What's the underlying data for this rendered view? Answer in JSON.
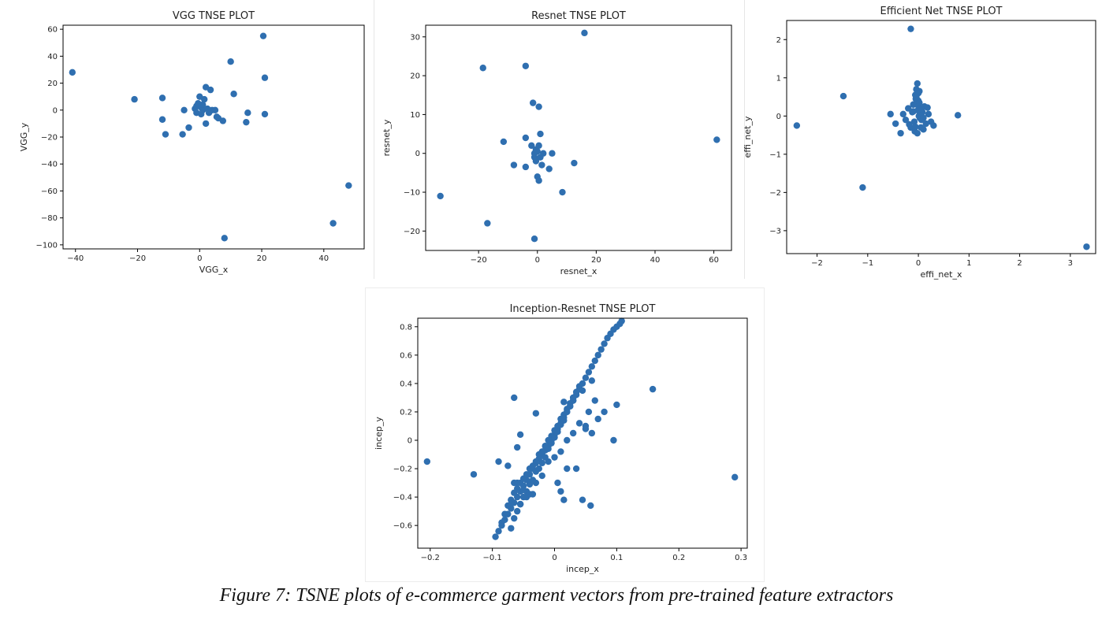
{
  "colors": {
    "marker": "#2f6fb0",
    "axis": "#000000",
    "text": "#222222"
  },
  "caption": "Figure 7: TSNE plots of e-commerce garment vectors from pre-trained feature extractors",
  "chart_data": [
    {
      "id": "vgg",
      "type": "scatter",
      "title": "VGG TNSE PLOT",
      "xlabel": "VGG_x",
      "ylabel": "VGG_y",
      "xlim": [
        -44,
        53
      ],
      "ylim": [
        -103,
        63
      ],
      "xticks": [
        -40,
        -20,
        0,
        20,
        40
      ],
      "yticks": [
        -100,
        -80,
        -60,
        -40,
        -20,
        0,
        20,
        40,
        60
      ],
      "x": [
        -41,
        -21,
        -12,
        -11,
        -12,
        -5,
        -5.5,
        -3.5,
        -1.5,
        -1,
        -1,
        -0.5,
        0,
        0.5,
        0.5,
        1,
        1,
        1.5,
        2,
        2,
        2.5,
        3,
        3.5,
        4,
        5,
        5.5,
        6,
        7.5,
        10,
        11,
        15,
        15.5,
        20.5,
        21,
        21,
        43,
        48,
        8
      ],
      "y": [
        28,
        8,
        9,
        -18,
        -7,
        0,
        -18,
        -13,
        1,
        3,
        -2,
        5,
        10,
        -3,
        2,
        0,
        4,
        8,
        17,
        -10,
        1,
        -2,
        15,
        0,
        0,
        -5,
        -6,
        -8,
        36,
        12,
        -9,
        -2,
        55,
        24,
        -3,
        -84,
        -56,
        -95
      ]
    },
    {
      "id": "resnet",
      "type": "scatter",
      "title": "Resnet TNSE PLOT",
      "xlabel": "resnet_x",
      "ylabel": "resnet_y",
      "xlim": [
        -38,
        66
      ],
      "ylim": [
        -25,
        33
      ],
      "xticks": [
        -20,
        0,
        20,
        40,
        60
      ],
      "yticks": [
        -20,
        -10,
        0,
        10,
        20,
        30
      ],
      "x": [
        -33,
        -18.5,
        -17,
        -11.5,
        -8,
        -4,
        -4,
        -4,
        -2,
        -1.5,
        -1,
        -1,
        -0.5,
        -0.5,
        0,
        0,
        0.5,
        0.5,
        0.5,
        1,
        1,
        1.5,
        2,
        4,
        5,
        8.5,
        12.5,
        16,
        61,
        -1
      ],
      "y": [
        -11,
        22,
        -18,
        3,
        -3,
        22.5,
        4,
        -3.5,
        2,
        13,
        -1,
        0,
        -2,
        1,
        0.5,
        -6,
        12,
        -7,
        2,
        5,
        -1,
        -3,
        0,
        -4,
        0,
        -10,
        -2.5,
        31,
        3.5,
        -22
      ]
    },
    {
      "id": "effinet",
      "type": "scatter",
      "title": "Efficient Net TNSE PLOT",
      "xlabel": "effi_net_x",
      "ylabel": "effi_net_y",
      "xlim": [
        -2.6,
        3.5
      ],
      "ylim": [
        -3.6,
        2.5
      ],
      "xticks": [
        -2,
        -1,
        0,
        1,
        2,
        3
      ],
      "yticks": [
        -3,
        -2,
        -1,
        0,
        1,
        2
      ],
      "x": [
        -2.4,
        -1.48,
        -1.1,
        -0.15,
        0.78,
        3.32,
        -0.55,
        -0.45,
        -0.35,
        -0.3,
        -0.25,
        -0.2,
        -0.15,
        -0.12,
        -0.1,
        -0.08,
        -0.06,
        -0.04,
        -0.02,
        0,
        0.02,
        0.04,
        0.06,
        0.08,
        0.1,
        0.12,
        0.15,
        0.2,
        0.25,
        0.3,
        -0.05,
        -0.03,
        -0.01,
        0.01,
        0.03,
        -0.07,
        0.05,
        -0.02,
        0,
        0.02,
        -0.04,
        0.04,
        -0.1,
        0.1,
        -0.18,
        0.18,
        -0.06,
        0.06
      ],
      "y": [
        -0.25,
        0.52,
        -1.87,
        2.28,
        0.02,
        -3.42,
        0.05,
        -0.2,
        -0.45,
        0.05,
        -0.1,
        0.2,
        -0.3,
        0.1,
        0.3,
        -0.15,
        0.55,
        0.7,
        0.85,
        0.4,
        0.65,
        0.2,
        -0.1,
        0.1,
        -0.35,
        0.25,
        -0.2,
        0.05,
        -0.15,
        -0.25,
        0.45,
        0.3,
        0.15,
        0.0,
        -0.05,
        -0.4,
        -0.3,
        -0.45,
        0.6,
        0.35,
        0.5,
        0.08,
        0.12,
        -0.05,
        -0.22,
        0.22,
        -0.28,
        0.18
      ]
    },
    {
      "id": "incep",
      "type": "scatter",
      "title": "Inception-Resnet TNSE PLOT",
      "xlabel": "incep_x",
      "ylabel": "incep_y",
      "xlim": [
        -0.22,
        0.31
      ],
      "ylim": [
        -0.76,
        0.86
      ],
      "xticks": [
        -0.2,
        -0.1,
        0.0,
        0.1,
        0.2,
        0.3
      ],
      "yticks": [
        -0.6,
        -0.4,
        -0.2,
        0.0,
        0.2,
        0.4,
        0.6,
        0.8
      ],
      "x": [
        -0.205,
        -0.13,
        -0.095,
        -0.09,
        -0.085,
        -0.08,
        -0.075,
        -0.07,
        -0.065,
        -0.06,
        -0.055,
        -0.05,
        -0.045,
        -0.04,
        -0.035,
        -0.03,
        -0.025,
        -0.02,
        -0.015,
        -0.01,
        -0.005,
        0.0,
        0.005,
        0.01,
        0.015,
        0.02,
        0.025,
        0.03,
        0.035,
        0.04,
        0.045,
        0.05,
        0.055,
        0.06,
        0.065,
        0.07,
        0.075,
        0.08,
        0.085,
        0.09,
        0.095,
        0.1,
        0.105,
        0.108,
        -0.085,
        -0.08,
        -0.075,
        -0.07,
        -0.065,
        -0.06,
        -0.055,
        -0.05,
        -0.045,
        -0.04,
        -0.035,
        -0.03,
        -0.025,
        -0.02,
        -0.015,
        -0.01,
        -0.005,
        0.0,
        0.005,
        0.01,
        0.015,
        0.02,
        0.025,
        0.03,
        0.035,
        0.04,
        -0.07,
        -0.065,
        -0.06,
        -0.055,
        -0.05,
        -0.045,
        -0.04,
        -0.035,
        -0.03,
        -0.025,
        -0.02,
        -0.015,
        -0.01,
        -0.005,
        0.0,
        0.005,
        0.01,
        0.015,
        0.02,
        0.025,
        0.03,
        -0.06,
        -0.05,
        -0.04,
        -0.03,
        -0.02,
        -0.01,
        0.0,
        0.01,
        0.02,
        0.03,
        0.04,
        -0.09,
        -0.07,
        -0.065,
        -0.055,
        -0.045,
        -0.035,
        0.015,
        0.02,
        0.03,
        0.045,
        0.05,
        0.055,
        0.06,
        0.065,
        0.07,
        0.08,
        0.095,
        0.1,
        0.158,
        0.29,
        -0.065,
        -0.06,
        -0.055,
        -0.075,
        0.01,
        0.015,
        0.035,
        0.045,
        0.058,
        -0.03,
        0.005,
        0.05,
        0.06
      ],
      "y": [
        -0.15,
        -0.24,
        -0.68,
        -0.64,
        -0.6,
        -0.56,
        -0.52,
        -0.48,
        -0.44,
        -0.4,
        -0.36,
        -0.32,
        -0.28,
        -0.24,
        -0.2,
        -0.16,
        -0.13,
        -0.1,
        -0.07,
        -0.04,
        0.0,
        0.04,
        0.08,
        0.12,
        0.16,
        0.2,
        0.24,
        0.28,
        0.32,
        0.36,
        0.4,
        0.44,
        0.48,
        0.52,
        0.56,
        0.6,
        0.64,
        0.68,
        0.72,
        0.75,
        0.78,
        0.8,
        0.82,
        0.84,
        -0.58,
        -0.52,
        -0.46,
        -0.42,
        -0.37,
        -0.34,
        -0.3,
        -0.27,
        -0.24,
        -0.2,
        -0.18,
        -0.15,
        -0.1,
        -0.08,
        -0.04,
        0.0,
        0.03,
        0.07,
        0.1,
        0.15,
        0.18,
        0.22,
        0.26,
        0.3,
        0.34,
        0.38,
        -0.62,
        -0.55,
        -0.5,
        -0.45,
        -0.4,
        -0.36,
        -0.31,
        -0.28,
        -0.22,
        -0.2,
        -0.16,
        -0.12,
        -0.06,
        -0.02,
        0.02,
        0.06,
        0.11,
        0.14,
        0.2,
        0.24,
        0.28,
        -0.3,
        -0.35,
        -0.38,
        -0.3,
        -0.25,
        -0.15,
        -0.12,
        -0.08,
        0.0,
        0.05,
        0.12,
        -0.15,
        -0.45,
        -0.3,
        -0.45,
        -0.4,
        -0.38,
        0.27,
        -0.2,
        0.3,
        0.35,
        0.1,
        0.2,
        0.05,
        0.28,
        0.15,
        0.2,
        0.0,
        0.25,
        0.36,
        -0.26,
        0.3,
        -0.05,
        0.04,
        -0.18,
        -0.36,
        -0.42,
        -0.2,
        -0.42,
        -0.46,
        0.19,
        -0.3,
        0.08,
        0.42
      ]
    }
  ]
}
